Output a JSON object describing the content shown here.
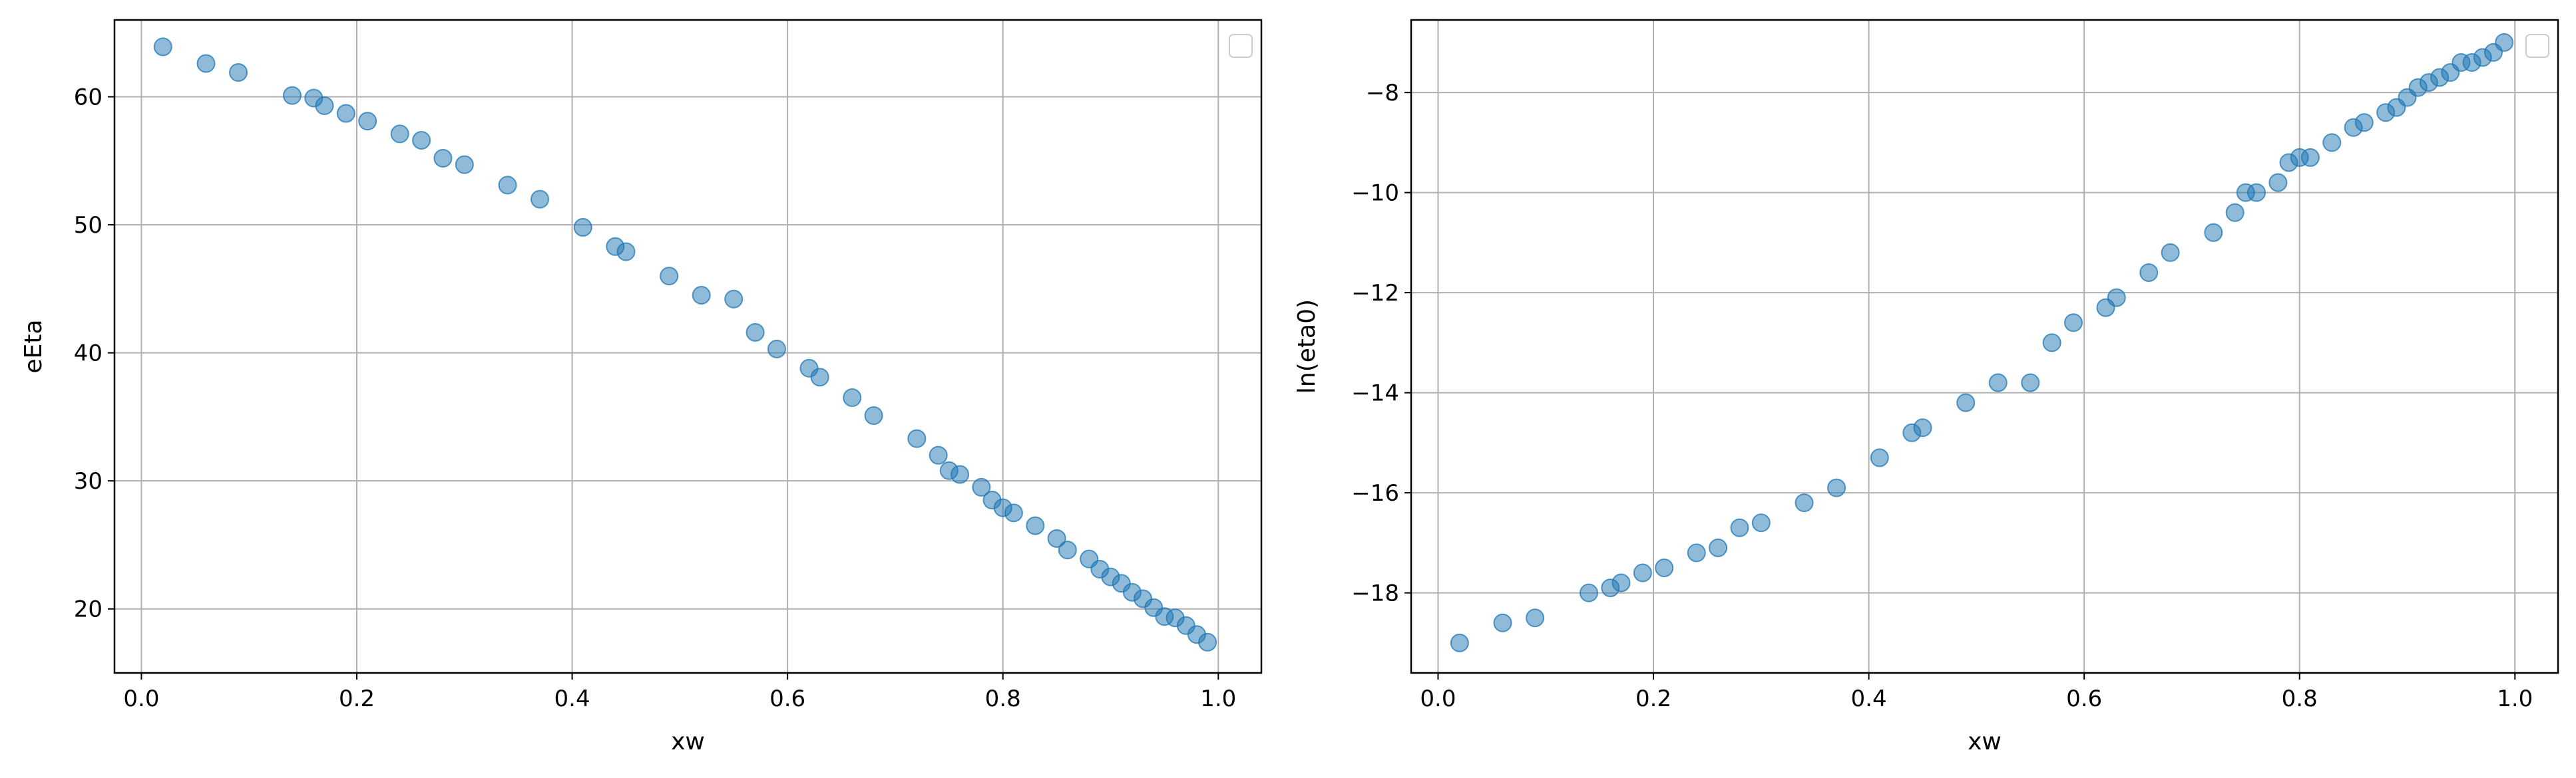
{
  "chart_data": [
    {
      "type": "scatter",
      "title": "",
      "xlabel": "xw",
      "ylabel": "eEta",
      "xlim": [
        -0.025,
        1.04
      ],
      "ylim": [
        15,
        66
      ],
      "xticks": [
        0.0,
        0.2,
        0.4,
        0.6,
        0.8,
        1.0
      ],
      "xtick_labels": [
        "0.0",
        "0.2",
        "0.4",
        "0.6",
        "0.8",
        "1.0"
      ],
      "yticks": [
        20,
        30,
        40,
        50,
        60
      ],
      "ytick_labels": [
        "20",
        "30",
        "40",
        "50",
        "60"
      ],
      "grid": true,
      "legend": {
        "placement": "top-right",
        "entries": []
      },
      "marker_color": "#1f77b4",
      "series": [
        {
          "x": [
            0.02,
            0.06,
            0.09,
            0.14,
            0.16,
            0.17,
            0.19,
            0.21,
            0.24,
            0.26,
            0.28,
            0.3,
            0.34,
            0.37,
            0.41,
            0.44,
            0.45,
            0.49,
            0.52,
            0.55,
            0.57,
            0.59,
            0.62,
            0.63,
            0.66,
            0.68,
            0.72,
            0.74,
            0.75,
            0.76,
            0.78,
            0.79,
            0.8,
            0.81,
            0.83,
            0.85,
            0.86,
            0.88,
            0.89,
            0.9,
            0.91,
            0.92,
            0.93,
            0.94,
            0.95,
            0.96,
            0.97,
            0.98,
            0.99
          ],
          "y": [
            63.9,
            62.6,
            61.9,
            60.1,
            59.9,
            59.3,
            58.7,
            58.1,
            57.1,
            56.6,
            55.2,
            54.7,
            53.1,
            52.0,
            49.8,
            48.3,
            47.9,
            46.0,
            44.5,
            44.2,
            41.6,
            40.3,
            38.8,
            38.1,
            36.5,
            35.1,
            33.3,
            32.0,
            30.8,
            30.5,
            29.5,
            28.5,
            27.9,
            27.5,
            26.5,
            25.5,
            24.6,
            23.9,
            23.1,
            22.5,
            22.0,
            21.3,
            20.8,
            20.1,
            19.4,
            19.3,
            18.7,
            18.0,
            17.4
          ]
        }
      ]
    },
    {
      "type": "scatter",
      "title": "",
      "xlabel": "xw",
      "ylabel": "ln(eta0)",
      "xlim": [
        -0.025,
        1.04
      ],
      "ylim": [
        -19.6,
        -6.55
      ],
      "xticks": [
        0.0,
        0.2,
        0.4,
        0.6,
        0.8,
        1.0
      ],
      "xtick_labels": [
        "0.0",
        "0.2",
        "0.4",
        "0.6",
        "0.8",
        "1.0"
      ],
      "yticks": [
        -18,
        -16,
        -14,
        -12,
        -10,
        -8
      ],
      "ytick_labels": [
        "−18",
        "−16",
        "−14",
        "−12",
        "−10",
        "−8"
      ],
      "grid": true,
      "legend": {
        "placement": "top-right",
        "entries": []
      },
      "marker_color": "#1f77b4",
      "series": [
        {
          "x": [
            0.02,
            0.06,
            0.09,
            0.14,
            0.16,
            0.17,
            0.19,
            0.21,
            0.24,
            0.26,
            0.28,
            0.3,
            0.34,
            0.37,
            0.41,
            0.44,
            0.45,
            0.49,
            0.52,
            0.55,
            0.57,
            0.59,
            0.62,
            0.63,
            0.66,
            0.68,
            0.72,
            0.74,
            0.75,
            0.76,
            0.78,
            0.79,
            0.8,
            0.81,
            0.83,
            0.85,
            0.86,
            0.88,
            0.89,
            0.9,
            0.91,
            0.92,
            0.93,
            0.94,
            0.95,
            0.96,
            0.97,
            0.98,
            0.99
          ],
          "y": [
            -19.0,
            -18.6,
            -18.5,
            -18.0,
            -17.9,
            -17.8,
            -17.6,
            -17.5,
            -17.2,
            -17.1,
            -16.7,
            -16.6,
            -16.2,
            -15.9,
            -15.3,
            -14.8,
            -14.7,
            -14.2,
            -13.8,
            -13.8,
            -13.0,
            -12.6,
            -12.3,
            -12.1,
            -11.6,
            -11.2,
            -10.8,
            -10.4,
            -10.0,
            -10.0,
            -9.8,
            -9.4,
            -9.3,
            -9.3,
            -9.0,
            -8.7,
            -8.6,
            -8.4,
            -8.3,
            -8.1,
            -7.9,
            -7.8,
            -7.7,
            -7.6,
            -7.4,
            -7.4,
            -7.3,
            -7.2,
            -7.0
          ]
        }
      ]
    }
  ]
}
